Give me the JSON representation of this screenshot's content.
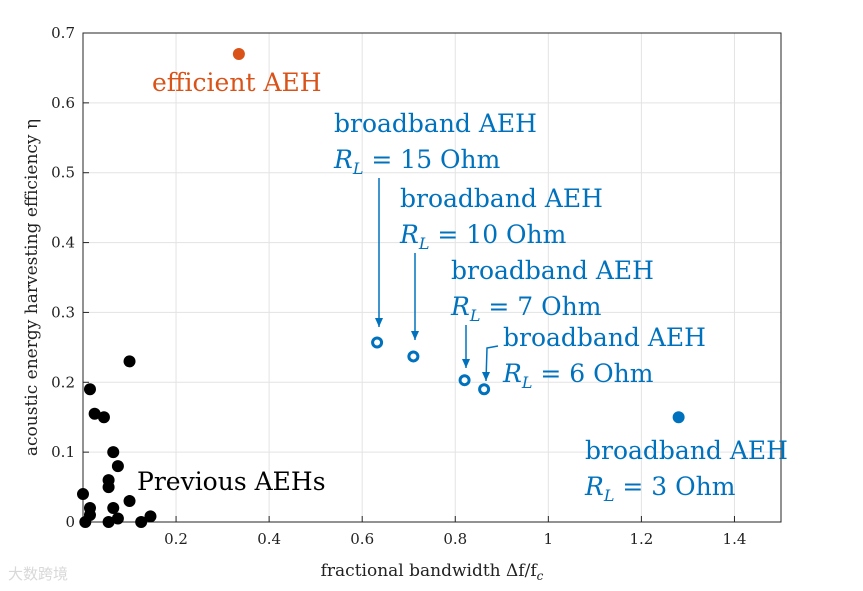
{
  "chart_data": {
    "type": "scatter",
    "xlabel": "fractional bandwidth Δf/f",
    "xlabel_sub": "c",
    "ylabel": "acoustic energy harvesting efficiency η",
    "xlim": [
      0,
      1.5
    ],
    "ylim": [
      0,
      0.7
    ],
    "xticks": [
      0.2,
      0.4,
      0.6,
      0.8,
      1,
      1.2,
      1.4
    ],
    "yticks": [
      0,
      0.1,
      0.2,
      0.3,
      0.4,
      0.5,
      0.6,
      0.7
    ],
    "grid": true,
    "colors": {
      "previous": "#000000",
      "efficient": "#d95319",
      "broadband": "#0072bd"
    },
    "series": [
      {
        "name": "Previous AEHs",
        "label": "Previous AEHs",
        "marker": "filled",
        "points": [
          {
            "x": 0.1,
            "y": 0.23
          },
          {
            "x": 0.015,
            "y": 0.19
          },
          {
            "x": 0.025,
            "y": 0.155
          },
          {
            "x": 0.045,
            "y": 0.15
          },
          {
            "x": 0.065,
            "y": 0.1
          },
          {
            "x": 0.075,
            "y": 0.08
          },
          {
            "x": 0.055,
            "y": 0.06
          },
          {
            "x": 0.055,
            "y": 0.05
          },
          {
            "x": 0.0,
            "y": 0.04
          },
          {
            "x": 0.1,
            "y": 0.03
          },
          {
            "x": 0.015,
            "y": 0.02
          },
          {
            "x": 0.065,
            "y": 0.02
          },
          {
            "x": 0.015,
            "y": 0.01
          },
          {
            "x": 0.075,
            "y": 0.005
          },
          {
            "x": 0.145,
            "y": 0.008
          },
          {
            "x": 0.125,
            "y": 0.0
          },
          {
            "x": 0.055,
            "y": 0.0
          },
          {
            "x": 0.005,
            "y": 0.0
          }
        ]
      },
      {
        "name": "efficient AEH",
        "label": "efficient AEH",
        "marker": "filled",
        "points": [
          {
            "x": 0.335,
            "y": 0.67
          }
        ]
      },
      {
        "name": "broadband AEH",
        "marker": "hollow",
        "points": [
          {
            "x": 0.632,
            "y": 0.257,
            "label": "broadband AEH",
            "sublabel": "= 15 Ohm"
          },
          {
            "x": 0.71,
            "y": 0.237,
            "label": "broadband AEH",
            "sublabel": "= 10 Ohm"
          },
          {
            "x": 0.82,
            "y": 0.203,
            "label": "broadband AEH",
            "sublabel": "= 7 Ohm"
          },
          {
            "x": 0.862,
            "y": 0.19,
            "label": "broadband AEH",
            "sublabel": "= 6 Ohm"
          },
          {
            "x": 1.28,
            "y": 0.15,
            "label": "broadband AEH",
            "sublabel": "= 3 Ohm",
            "filled": true
          }
        ]
      }
    ],
    "rl_symbol": "R",
    "rl_sub": "L"
  },
  "watermark": "大数跨境"
}
